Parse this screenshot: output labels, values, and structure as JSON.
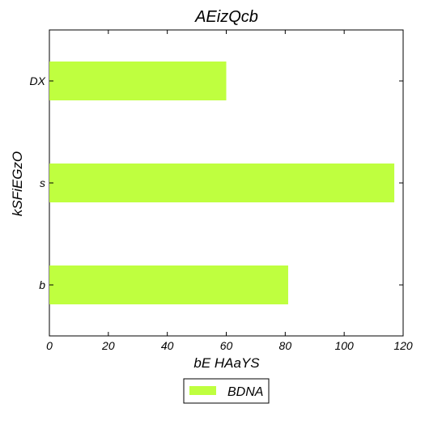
{
  "chart_data": {
    "type": "bar",
    "orientation": "horizontal",
    "title": "AEizQcb",
    "xlabel": "bE HAaYS",
    "ylabel": "kSFiEGzO",
    "categories": [
      "DX",
      "s",
      "b"
    ],
    "series": [
      {
        "name": "BDNA",
        "values": [
          60,
          117,
          81
        ],
        "color": "#bfff3f"
      }
    ],
    "xlim": [
      0,
      120
    ],
    "xticks": [
      "0",
      "20",
      "40",
      "60",
      "80",
      "100",
      "120"
    ],
    "grid": false,
    "legend_position": "bottom-center"
  }
}
